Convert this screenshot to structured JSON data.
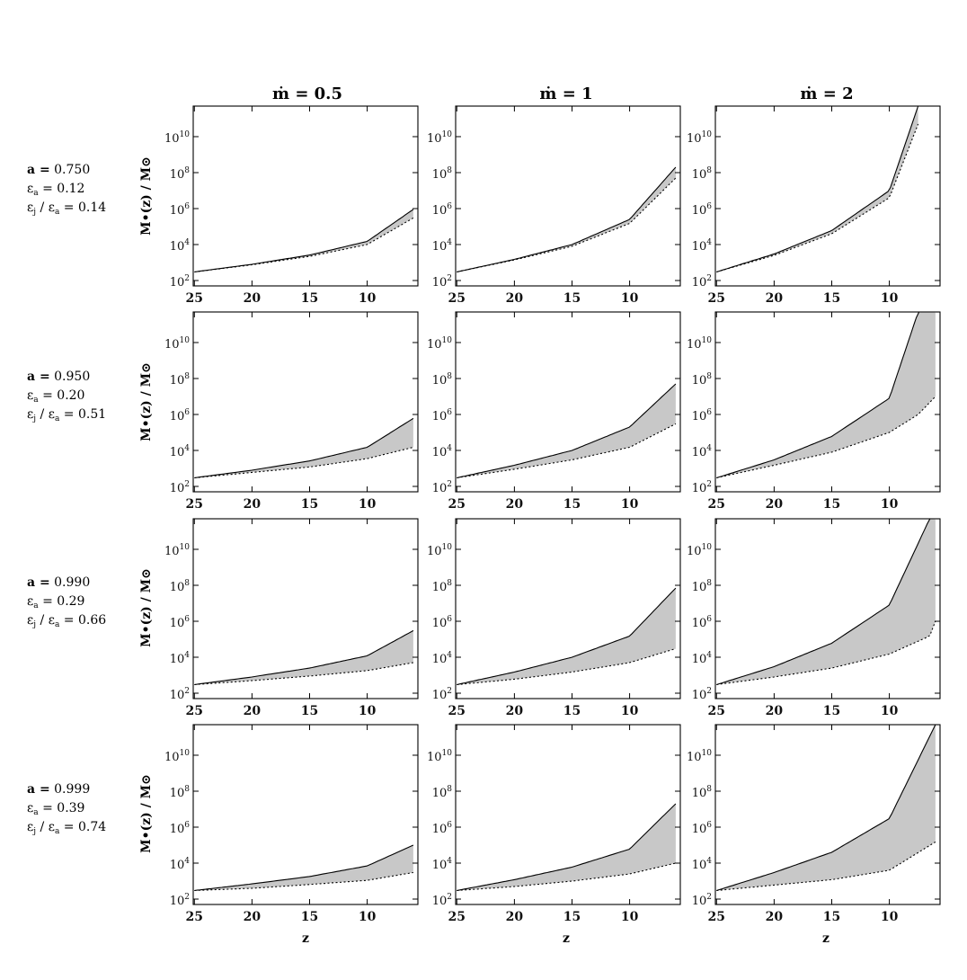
{
  "figure": {
    "column_titles": [
      "ṁ = 0.5",
      "ṁ = 1",
      "ṁ = 2"
    ],
    "ylabel": "M•(z) / M⊙",
    "xlabel": "z",
    "row_labels": [
      {
        "a": "0.750",
        "eps_a": "0.12",
        "eps_ratio": "0.14"
      },
      {
        "a": "0.950",
        "eps_a": "0.20",
        "eps_ratio": "0.51"
      },
      {
        "a": "0.990",
        "eps_a": "0.29",
        "eps_ratio": "0.66"
      },
      {
        "a": "0.999",
        "eps_a": "0.39",
        "eps_ratio": "0.74"
      }
    ],
    "label_text": {
      "a": "a =",
      "eps": "ε",
      "sub_a": "a",
      "sub_j": "j",
      "slash": " / "
    }
  },
  "chart_data": {
    "type": "area",
    "layout": "grid 4 rows x 3 columns",
    "xlabel": "z",
    "ylabel": "M•(z) / M⊙",
    "x_direction": "decreasing",
    "xlim": [
      25,
      6
    ],
    "xticks": [
      25,
      20,
      15,
      10
    ],
    "y_scale": "log",
    "ylim": [
      100,
      500000000000.0
    ],
    "yticks": [
      100,
      10000,
      1000000,
      100000000,
      10000000000
    ],
    "ytick_labels": [
      "10^2",
      "10^4",
      "10^6",
      "10^8",
      "10^10"
    ],
    "shading": "gray band between upper (solid) and lower (dotted) curves",
    "panels": [
      {
        "row": 0,
        "col": 0,
        "mdot": "0.5",
        "a": "0.750",
        "x": [
          25,
          20,
          15,
          10,
          6
        ],
        "upper": [
          300,
          800,
          2600,
          15000,
          900000
        ],
        "lower": [
          300,
          750,
          2200,
          10000,
          300000
        ]
      },
      {
        "row": 0,
        "col": 1,
        "mdot": "1",
        "a": "0.750",
        "x": [
          25,
          20,
          15,
          10,
          6
        ],
        "upper": [
          300,
          1500,
          10000,
          250000,
          200000000
        ],
        "lower": [
          300,
          1400,
          8000,
          150000,
          50000000
        ]
      },
      {
        "row": 0,
        "col": 2,
        "mdot": "2",
        "a": "0.750",
        "x": [
          25,
          20,
          15,
          10,
          7.5
        ],
        "upper": [
          300,
          3000,
          60000,
          10000000,
          500000000000
        ],
        "lower": [
          300,
          2500,
          40000,
          4000000,
          50000000000
        ]
      },
      {
        "row": 1,
        "col": 0,
        "mdot": "0.5",
        "a": "0.950",
        "x": [
          25,
          20,
          15,
          10,
          6
        ],
        "upper": [
          300,
          800,
          2600,
          15000,
          600000
        ],
        "lower": [
          300,
          600,
          1200,
          3500,
          15000
        ]
      },
      {
        "row": 1,
        "col": 1,
        "mdot": "1",
        "a": "0.950",
        "x": [
          25,
          20,
          15,
          10,
          6
        ],
        "upper": [
          300,
          1500,
          10000,
          200000,
          50000000
        ],
        "lower": [
          300,
          900,
          3000,
          15000,
          300000
        ]
      },
      {
        "row": 1,
        "col": 2,
        "mdot": "2",
        "a": "0.950",
        "x": [
          25,
          20,
          15,
          10,
          7.5,
          6
        ],
        "upper": [
          300,
          3000,
          60000,
          8000000,
          500000000000,
          500000000000
        ],
        "lower": [
          300,
          1500,
          8000,
          100000,
          1000000,
          10000000
        ]
      },
      {
        "row": 2,
        "col": 0,
        "mdot": "0.5",
        "a": "0.990",
        "x": [
          25,
          20,
          15,
          10,
          6
        ],
        "upper": [
          300,
          800,
          2500,
          12000,
          300000
        ],
        "lower": [
          300,
          500,
          900,
          1800,
          5000
        ]
      },
      {
        "row": 2,
        "col": 1,
        "mdot": "1",
        "a": "0.990",
        "x": [
          25,
          20,
          15,
          10,
          6
        ],
        "upper": [
          300,
          1500,
          10000,
          150000,
          70000000
        ],
        "lower": [
          300,
          600,
          1500,
          5000,
          30000
        ]
      },
      {
        "row": 2,
        "col": 2,
        "mdot": "2",
        "a": "0.990",
        "x": [
          25,
          20,
          15,
          10,
          6.5,
          6
        ],
        "upper": [
          300,
          3000,
          60000,
          8000000,
          500000000000,
          500000000000
        ],
        "lower": [
          300,
          800,
          2500,
          15000,
          150000,
          1000000
        ]
      },
      {
        "row": 3,
        "col": 0,
        "mdot": "0.5",
        "a": "0.999",
        "x": [
          25,
          20,
          15,
          10,
          6
        ],
        "upper": [
          300,
          700,
          1800,
          7000,
          100000
        ],
        "lower": [
          300,
          400,
          650,
          1100,
          3000
        ]
      },
      {
        "row": 3,
        "col": 1,
        "mdot": "1",
        "a": "0.999",
        "x": [
          25,
          20,
          15,
          10,
          6
        ],
        "upper": [
          300,
          1200,
          6000,
          60000,
          20000000
        ],
        "lower": [
          300,
          500,
          1000,
          2500,
          10000
        ]
      },
      {
        "row": 3,
        "col": 2,
        "mdot": "2",
        "a": "0.999",
        "x": [
          25,
          20,
          15,
          10,
          6
        ],
        "upper": [
          300,
          3000,
          40000,
          3000000,
          500000000000
        ],
        "lower": [
          300,
          600,
          1200,
          4000,
          150000
        ]
      }
    ]
  }
}
